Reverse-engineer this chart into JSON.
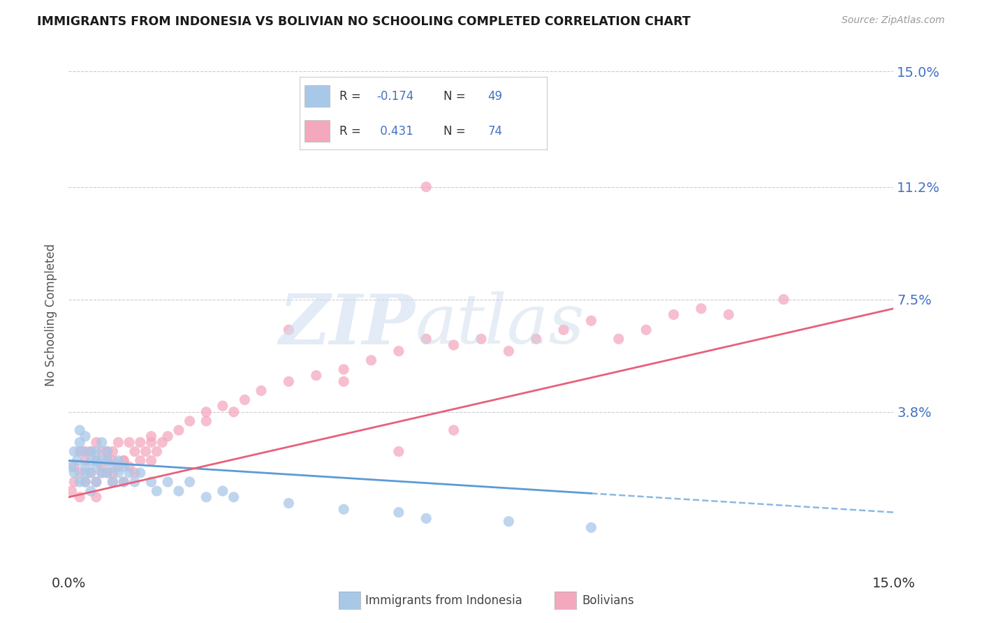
{
  "title": "IMMIGRANTS FROM INDONESIA VS BOLIVIAN NO SCHOOLING COMPLETED CORRELATION CHART",
  "source": "Source: ZipAtlas.com",
  "ylabel": "No Schooling Completed",
  "xlim": [
    0.0,
    0.15
  ],
  "ylim": [
    -0.015,
    0.155
  ],
  "ytick_positions": [
    0.038,
    0.075,
    0.112,
    0.15
  ],
  "ytick_labels": [
    "3.8%",
    "7.5%",
    "11.2%",
    "15.0%"
  ],
  "xtick_positions": [
    0.0,
    0.15
  ],
  "xtick_labels": [
    "0.0%",
    "15.0%"
  ],
  "r_indonesia": -0.174,
  "n_indonesia": 49,
  "r_bolivian": 0.431,
  "n_bolivian": 74,
  "color_indonesia": "#a8c8e8",
  "color_bolivian": "#f4a8be",
  "line_color_indonesia": "#5b9bd5",
  "line_color_bolivian": "#e8607a",
  "background_color": "#ffffff",
  "scatter_alpha": 0.75,
  "scatter_size": 120,
  "indonesia_x": [
    0.0005,
    0.001,
    0.001,
    0.0015,
    0.002,
    0.002,
    0.002,
    0.0025,
    0.003,
    0.003,
    0.003,
    0.003,
    0.004,
    0.004,
    0.004,
    0.004,
    0.005,
    0.005,
    0.005,
    0.005,
    0.006,
    0.006,
    0.006,
    0.007,
    0.007,
    0.007,
    0.008,
    0.008,
    0.009,
    0.009,
    0.01,
    0.01,
    0.011,
    0.012,
    0.013,
    0.015,
    0.016,
    0.018,
    0.02,
    0.022,
    0.025,
    0.028,
    0.03,
    0.04,
    0.05,
    0.06,
    0.065,
    0.08,
    0.095
  ],
  "indonesia_y": [
    0.02,
    0.025,
    0.018,
    0.022,
    0.028,
    0.015,
    0.032,
    0.025,
    0.02,
    0.03,
    0.018,
    0.015,
    0.022,
    0.025,
    0.018,
    0.012,
    0.02,
    0.025,
    0.015,
    0.022,
    0.018,
    0.028,
    0.022,
    0.025,
    0.018,
    0.022,
    0.015,
    0.02,
    0.018,
    0.022,
    0.015,
    0.02,
    0.018,
    0.015,
    0.018,
    0.015,
    0.012,
    0.015,
    0.012,
    0.015,
    0.01,
    0.012,
    0.01,
    0.008,
    0.006,
    0.005,
    0.003,
    0.002,
    0.0
  ],
  "bolivian_x": [
    0.0005,
    0.001,
    0.001,
    0.002,
    0.002,
    0.002,
    0.003,
    0.003,
    0.003,
    0.004,
    0.004,
    0.005,
    0.005,
    0.005,
    0.006,
    0.006,
    0.006,
    0.007,
    0.007,
    0.007,
    0.008,
    0.008,
    0.008,
    0.009,
    0.009,
    0.01,
    0.01,
    0.011,
    0.011,
    0.012,
    0.012,
    0.013,
    0.013,
    0.014,
    0.015,
    0.015,
    0.016,
    0.017,
    0.018,
    0.02,
    0.022,
    0.025,
    0.028,
    0.03,
    0.032,
    0.035,
    0.04,
    0.045,
    0.05,
    0.055,
    0.06,
    0.065,
    0.07,
    0.075,
    0.08,
    0.085,
    0.09,
    0.095,
    0.1,
    0.105,
    0.11,
    0.115,
    0.12,
    0.13,
    0.065,
    0.04,
    0.05,
    0.06,
    0.07,
    0.025,
    0.015,
    0.01,
    0.008,
    0.005
  ],
  "bolivian_y": [
    0.012,
    0.015,
    0.02,
    0.018,
    0.025,
    0.01,
    0.022,
    0.015,
    0.025,
    0.018,
    0.025,
    0.015,
    0.022,
    0.028,
    0.02,
    0.025,
    0.018,
    0.022,
    0.025,
    0.018,
    0.025,
    0.022,
    0.018,
    0.02,
    0.028,
    0.015,
    0.022,
    0.02,
    0.028,
    0.025,
    0.018,
    0.022,
    0.028,
    0.025,
    0.022,
    0.028,
    0.025,
    0.028,
    0.03,
    0.032,
    0.035,
    0.035,
    0.04,
    0.038,
    0.042,
    0.045,
    0.048,
    0.05,
    0.052,
    0.055,
    0.058,
    0.112,
    0.06,
    0.062,
    0.058,
    0.062,
    0.065,
    0.068,
    0.062,
    0.065,
    0.07,
    0.072,
    0.07,
    0.075,
    0.062,
    0.065,
    0.048,
    0.025,
    0.032,
    0.038,
    0.03,
    0.022,
    0.015,
    0.01
  ],
  "line_indo_x0": 0.0,
  "line_indo_x1": 0.15,
  "line_indo_y0": 0.022,
  "line_indo_y1": 0.005,
  "line_indo_ext_x1": 0.15,
  "line_indo_ext_y1": -0.003,
  "line_boliv_x0": 0.0,
  "line_boliv_x1": 0.15,
  "line_boliv_y0": 0.01,
  "line_boliv_y1": 0.072
}
